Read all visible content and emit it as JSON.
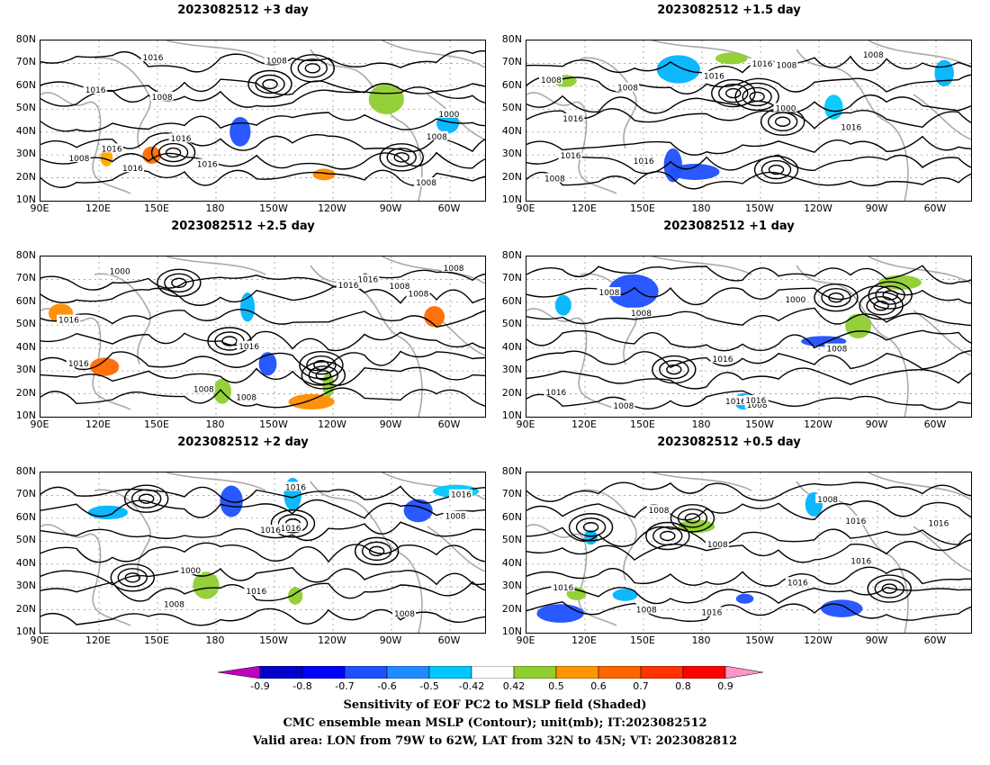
{
  "panels": [
    {
      "title": "2023082512  +3 day",
      "contour_labels": [
        "1008",
        "1016",
        "1016",
        "1016",
        "1008",
        "1000",
        "1008",
        "1016",
        "1016",
        "1016",
        "1008",
        "1008"
      ],
      "shade_colors": [
        "#ff8c00",
        "#ff6a00",
        "#8fce2f",
        "#00b4ff",
        "#1e50ff",
        "#ffa500"
      ]
    },
    {
      "title": "2023082512  +1.5 day",
      "contour_labels": [
        "1008",
        "1016",
        "1016",
        "1016",
        "1008",
        "1016",
        "1008",
        "1000",
        "1008",
        "1016",
        "1016",
        "1008"
      ],
      "shade_colors": [
        "#00b4ff",
        "#1e50ff",
        "#8fce2f",
        "#00c8ff"
      ]
    },
    {
      "title": "2023082512  +2.5 day",
      "contour_labels": [
        "1016",
        "1008",
        "1016",
        "1016",
        "1008",
        "1000",
        "1016",
        "1008",
        "1016",
        "1008",
        "1008"
      ],
      "shade_colors": [
        "#ff8c00",
        "#8fce2f",
        "#ff6a00",
        "#00b4ff",
        "#1e50ff"
      ]
    },
    {
      "title": "2023082512  +1 day",
      "contour_labels": [
        "1008",
        "1016",
        "1016",
        "1016",
        "1008",
        "1008",
        "1000",
        "1008",
        "1016",
        "1008"
      ],
      "shade_colors": [
        "#1e50ff",
        "#00b4ff",
        "#8fce2f"
      ]
    },
    {
      "title": "2023082512  +2 day",
      "contour_labels": [
        "1008",
        "1016",
        "1016",
        "1016",
        "1008",
        "1000",
        "1016",
        "1016",
        "1008"
      ],
      "shade_colors": [
        "#8fce2f",
        "#00b4ff",
        "#1e50ff",
        "#00c8ff"
      ]
    },
    {
      "title": "2023082512  +0.5 day",
      "contour_labels": [
        "1016",
        "1008",
        "1016",
        "1016",
        "1008",
        "1016",
        "1008",
        "1016",
        "1008",
        "1016"
      ],
      "shade_colors": [
        "#1e50ff",
        "#00b4ff",
        "#8fce2f"
      ]
    }
  ],
  "lat_ticks": [
    "80N",
    "70N",
    "60N",
    "50N",
    "40N",
    "30N",
    "20N",
    "10N"
  ],
  "lon_ticks": [
    "90E",
    "120E",
    "150E",
    "180",
    "150W",
    "120W",
    "90W",
    "60W"
  ],
  "colorbar": {
    "colors": [
      "#c000c0",
      "#0000c8",
      "#0000ff",
      "#1e50ff",
      "#1e8cff",
      "#00c8ff",
      "#ffffff",
      "#8fce2f",
      "#ff9600",
      "#ff6400",
      "#ff3200",
      "#ff0000",
      "#ff96c8"
    ],
    "labels": [
      "-0.9",
      "-0.8",
      "-0.7",
      "-0.6",
      "-0.5",
      "-0.42",
      "0.42",
      "0.5",
      "0.6",
      "0.7",
      "0.8",
      "0.9"
    ]
  },
  "caption": {
    "line1": "Sensitivity of EOF PC2 to MSLP field (Shaded)",
    "line2": "CMC ensemble mean MSLP (Contour); unit(mb); IT:2023082512",
    "line3": "Valid area: LON from 79W to 62W, LAT from 32N to 45N; VT: 2023082812"
  }
}
